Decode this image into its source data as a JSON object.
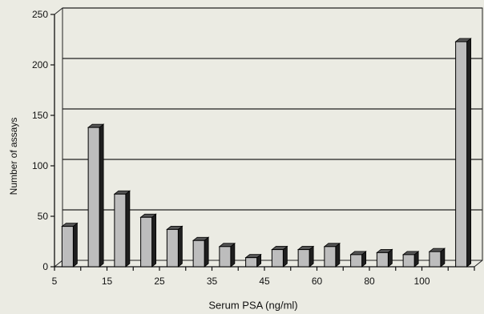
{
  "chart_data": {
    "type": "bar",
    "title": "",
    "xlabel": "Serum PSA (ng/ml)",
    "ylabel": "Number of assays",
    "ylim": [
      0,
      250
    ],
    "yticks": [
      0,
      50,
      100,
      150,
      200,
      250
    ],
    "xtick_labels": [
      "5",
      "",
      "15",
      "",
      "25",
      "",
      "35",
      "",
      "45",
      "",
      "60",
      "",
      "80",
      "",
      "100",
      "",
      ""
    ],
    "values": [
      40,
      138,
      72,
      49,
      37,
      26,
      20,
      9,
      17,
      17,
      20,
      12,
      14,
      12,
      15,
      223
    ],
    "grid": true,
    "colors": {
      "bar_face": "#bdbdbd",
      "bar_side": "#1e1e1e",
      "background": "#ebebe3",
      "grid": "#202020"
    }
  }
}
